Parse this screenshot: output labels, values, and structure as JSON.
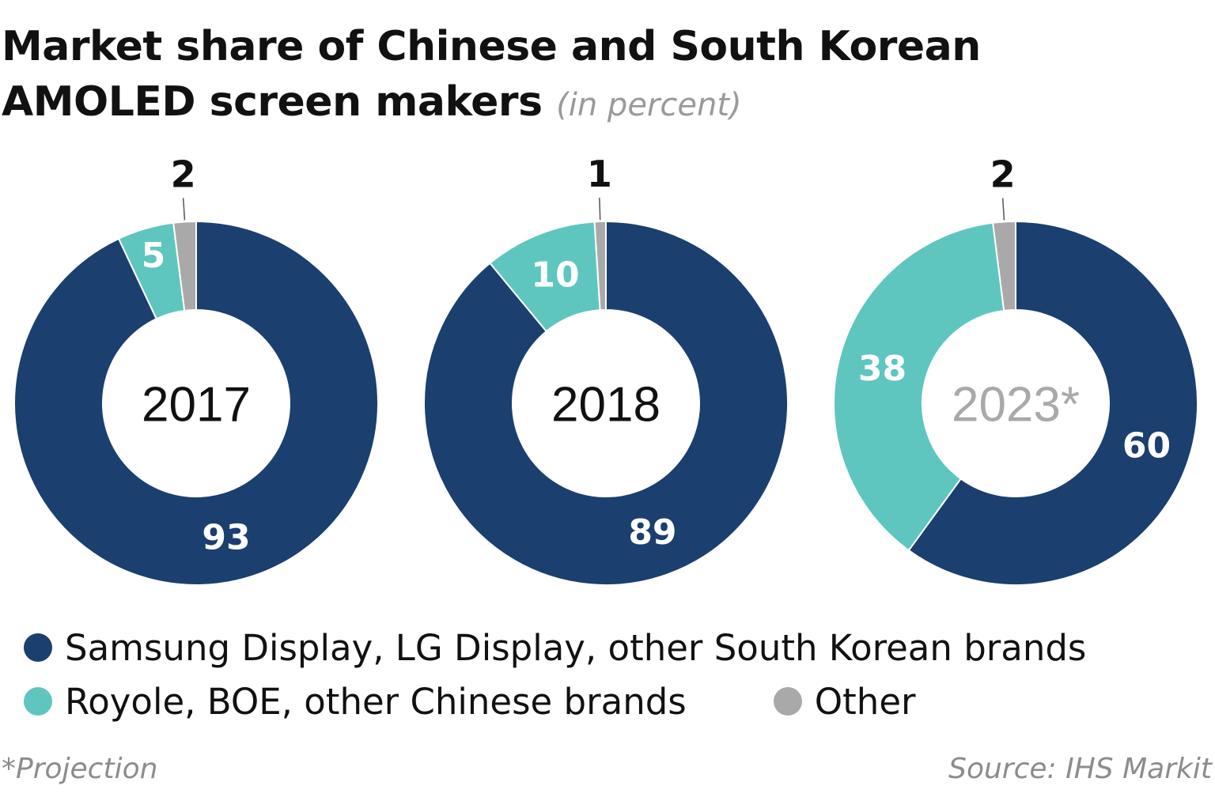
{
  "title": {
    "main": "Market share of Chinese and South Korean AMOLED screen makers",
    "unit": "(in percent)"
  },
  "chart_data": {
    "type": "donut",
    "series_names": [
      "Samsung Display, LG Display, other South Korean brands",
      "Royole, BOE, other Chinese brands",
      "Other"
    ],
    "colors": [
      "#1b3f6e",
      "#5ec6be",
      "#a9a9a9"
    ],
    "charts": [
      {
        "center_label": "2017",
        "projection": false,
        "values": [
          93,
          5,
          2
        ]
      },
      {
        "center_label": "2018",
        "projection": false,
        "values": [
          89,
          10,
          1
        ]
      },
      {
        "center_label": "2023*",
        "projection": true,
        "values": [
          60,
          38,
          2
        ]
      }
    ]
  },
  "legend": {
    "korean": "Samsung Display, LG Display, other South Korean brands",
    "chinese": "Royole, BOE, other Chinese brands",
    "other": "Other"
  },
  "footnote": "*Projection",
  "source": "Source: IHS Markit"
}
